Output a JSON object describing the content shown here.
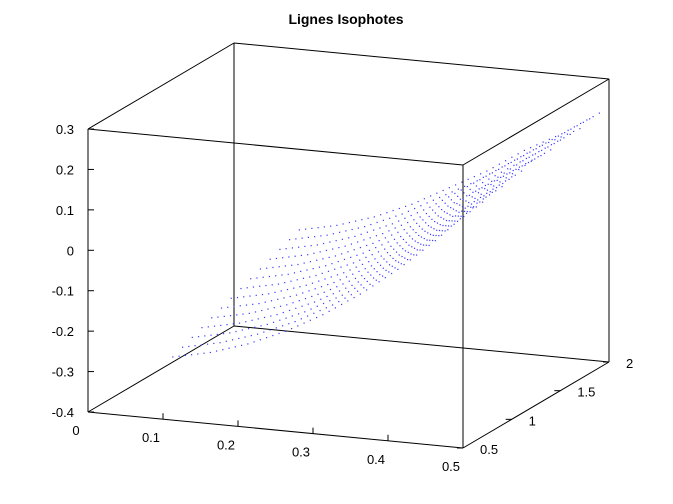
{
  "chart_data": {
    "type": "scatter",
    "plot_kind": "3d-dotted-surface",
    "title": "Lignes Isophotes",
    "xlabel": "",
    "ylabel": "",
    "zlabel": "",
    "xlim": [
      0,
      0.5
    ],
    "ylim": [
      0.5,
      2
    ],
    "zlim": [
      -0.4,
      0.3
    ],
    "x_ticks": [
      "0",
      "0.1",
      "0.2",
      "0.3",
      "0.4",
      "0.5"
    ],
    "y_ticks": [
      "0.5",
      "1",
      "1.5",
      "2"
    ],
    "z_ticks": [
      "-0.4",
      "-0.3",
      "-0.2",
      "-0.1",
      "0",
      "0.1",
      "0.2",
      "0.3"
    ],
    "grid": false,
    "marker_color": "#3a3aff",
    "series": [
      {
        "description_of_lines": "Isophote lines drawn as dotted curves; each line runs from near x=0.1 up to x=0.5 at a fixed y",
        "lines": [
          {
            "y": 0.6,
            "points": [
              [
                0.1,
                -0.26
              ],
              [
                0.15,
                -0.24
              ],
              [
                0.2,
                -0.21
              ],
              [
                0.25,
                -0.17
              ],
              [
                0.3,
                -0.12
              ],
              [
                0.35,
                -0.06
              ],
              [
                0.4,
                0.01
              ],
              [
                0.45,
                0.09
              ],
              [
                0.5,
                0.18
              ]
            ]
          },
          {
            "y": 0.7,
            "points": [
              [
                0.1,
                -0.25
              ],
              [
                0.15,
                -0.23
              ],
              [
                0.2,
                -0.2
              ],
              [
                0.25,
                -0.16
              ],
              [
                0.3,
                -0.11
              ],
              [
                0.35,
                -0.05
              ],
              [
                0.4,
                0.02
              ],
              [
                0.45,
                0.1
              ],
              [
                0.5,
                0.18
              ]
            ]
          },
          {
            "y": 0.8,
            "points": [
              [
                0.1,
                -0.24
              ],
              [
                0.15,
                -0.22
              ],
              [
                0.2,
                -0.19
              ],
              [
                0.25,
                -0.15
              ],
              [
                0.3,
                -0.1
              ],
              [
                0.35,
                -0.04
              ],
              [
                0.4,
                0.03
              ],
              [
                0.45,
                0.11
              ],
              [
                0.5,
                0.19
              ]
            ]
          },
          {
            "y": 0.9,
            "points": [
              [
                0.1,
                -0.23
              ],
              [
                0.15,
                -0.21
              ],
              [
                0.2,
                -0.18
              ],
              [
                0.25,
                -0.14
              ],
              [
                0.3,
                -0.09
              ],
              [
                0.35,
                -0.03
              ],
              [
                0.4,
                0.04
              ],
              [
                0.45,
                0.12
              ],
              [
                0.5,
                0.19
              ]
            ]
          },
          {
            "y": 1.0,
            "points": [
              [
                0.1,
                -0.22
              ],
              [
                0.15,
                -0.2
              ],
              [
                0.2,
                -0.17
              ],
              [
                0.25,
                -0.13
              ],
              [
                0.3,
                -0.08
              ],
              [
                0.35,
                -0.02
              ],
              [
                0.4,
                0.05
              ],
              [
                0.45,
                0.13
              ],
              [
                0.5,
                0.2
              ]
            ]
          },
          {
            "y": 1.1,
            "points": [
              [
                0.1,
                -0.21
              ],
              [
                0.15,
                -0.19
              ],
              [
                0.2,
                -0.16
              ],
              [
                0.25,
                -0.12
              ],
              [
                0.3,
                -0.07
              ],
              [
                0.35,
                -0.01
              ],
              [
                0.4,
                0.06
              ],
              [
                0.45,
                0.13
              ],
              [
                0.5,
                0.2
              ]
            ]
          },
          {
            "y": 1.2,
            "points": [
              [
                0.1,
                -0.2
              ],
              [
                0.15,
                -0.18
              ],
              [
                0.2,
                -0.15
              ],
              [
                0.25,
                -0.11
              ],
              [
                0.3,
                -0.06
              ],
              [
                0.35,
                0.0
              ],
              [
                0.4,
                0.07
              ],
              [
                0.45,
                0.14
              ],
              [
                0.5,
                0.21
              ]
            ]
          },
          {
            "y": 1.3,
            "points": [
              [
                0.1,
                -0.19
              ],
              [
                0.15,
                -0.17
              ],
              [
                0.2,
                -0.14
              ],
              [
                0.25,
                -0.1
              ],
              [
                0.3,
                -0.05
              ],
              [
                0.35,
                0.01
              ],
              [
                0.4,
                0.08
              ],
              [
                0.45,
                0.15
              ],
              [
                0.5,
                0.21
              ]
            ]
          },
          {
            "y": 1.4,
            "points": [
              [
                0.1,
                -0.18
              ],
              [
                0.15,
                -0.16
              ],
              [
                0.2,
                -0.13
              ],
              [
                0.25,
                -0.09
              ],
              [
                0.3,
                -0.04
              ],
              [
                0.35,
                0.02
              ],
              [
                0.4,
                0.09
              ],
              [
                0.45,
                0.15
              ],
              [
                0.5,
                0.21
              ]
            ]
          },
          {
            "y": 1.5,
            "points": [
              [
                0.1,
                -0.17
              ],
              [
                0.15,
                -0.15
              ],
              [
                0.2,
                -0.12
              ],
              [
                0.25,
                -0.08
              ],
              [
                0.3,
                -0.03
              ],
              [
                0.35,
                0.03
              ],
              [
                0.4,
                0.09
              ],
              [
                0.45,
                0.16
              ],
              [
                0.5,
                0.22
              ]
            ]
          },
          {
            "y": 1.6,
            "points": [
              [
                0.1,
                -0.16
              ],
              [
                0.15,
                -0.14
              ],
              [
                0.2,
                -0.11
              ],
              [
                0.25,
                -0.07
              ],
              [
                0.3,
                -0.02
              ],
              [
                0.35,
                0.04
              ],
              [
                0.4,
                0.1
              ],
              [
                0.45,
                0.16
              ],
              [
                0.5,
                0.22
              ]
            ]
          },
          {
            "y": 1.7,
            "points": [
              [
                0.1,
                -0.15
              ],
              [
                0.15,
                -0.13
              ],
              [
                0.2,
                -0.1
              ],
              [
                0.25,
                -0.06
              ],
              [
                0.3,
                -0.01
              ],
              [
                0.35,
                0.05
              ],
              [
                0.4,
                0.11
              ],
              [
                0.45,
                0.17
              ],
              [
                0.5,
                0.22
              ]
            ]
          },
          {
            "y": 1.8,
            "points": [
              [
                0.1,
                -0.14
              ],
              [
                0.15,
                -0.12
              ],
              [
                0.2,
                -0.09
              ],
              [
                0.25,
                -0.05
              ],
              [
                0.3,
                0.0
              ],
              [
                0.35,
                0.05
              ],
              [
                0.4,
                0.11
              ],
              [
                0.45,
                0.17
              ],
              [
                0.5,
                0.23
              ]
            ]
          },
          {
            "y": 1.9,
            "points": [
              [
                0.1,
                -0.13
              ],
              [
                0.15,
                -0.11
              ],
              [
                0.2,
                -0.08
              ],
              [
                0.25,
                -0.04
              ],
              [
                0.3,
                0.01
              ],
              [
                0.35,
                0.06
              ],
              [
                0.4,
                0.12
              ],
              [
                0.45,
                0.17
              ],
              [
                0.5,
                0.23
              ]
            ]
          }
        ]
      }
    ]
  }
}
